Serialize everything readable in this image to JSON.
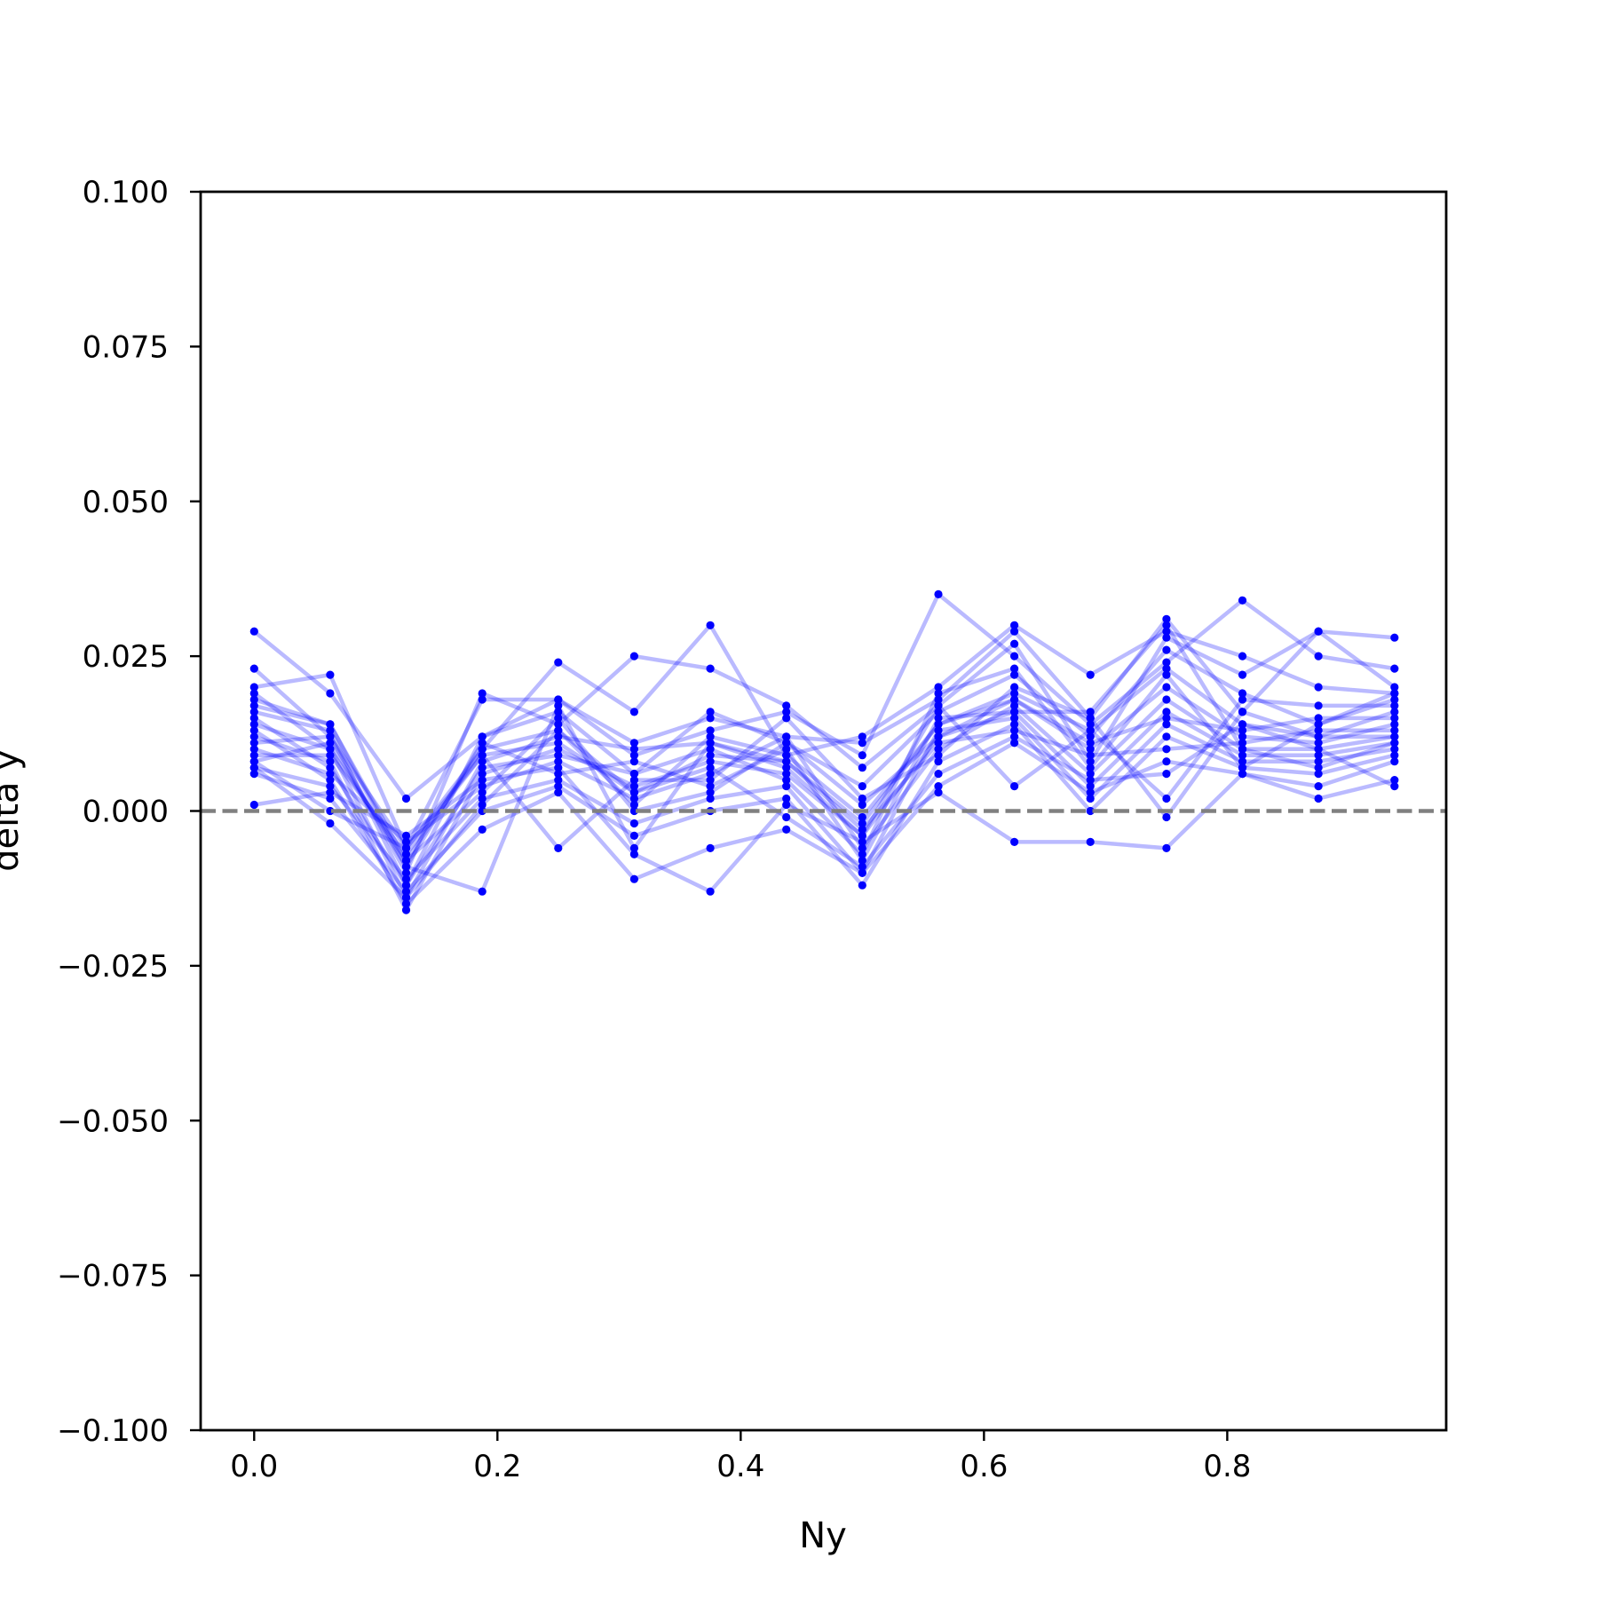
{
  "chart_data": {
    "type": "line",
    "title": "",
    "xlabel": "Ny",
    "ylabel": "delta y",
    "xlim": [
      -0.044,
      0.98
    ],
    "ylim": [
      -0.1,
      0.1
    ],
    "x_ticks": [
      {
        "value": 0.0,
        "label": "0.0"
      },
      {
        "value": 0.2,
        "label": "0.2"
      },
      {
        "value": 0.4,
        "label": "0.4"
      },
      {
        "value": 0.6,
        "label": "0.6"
      },
      {
        "value": 0.8,
        "label": "0.8"
      }
    ],
    "y_ticks": [
      {
        "value": 0.1,
        "label": "0.100"
      },
      {
        "value": 0.075,
        "label": "0.075"
      },
      {
        "value": 0.05,
        "label": "0.050"
      },
      {
        "value": 0.025,
        "label": "0.025"
      },
      {
        "value": 0.0,
        "label": "0.000"
      },
      {
        "value": -0.025,
        "label": "−0.025"
      },
      {
        "value": -0.05,
        "label": "−0.050"
      },
      {
        "value": -0.075,
        "label": "−0.075"
      },
      {
        "value": -0.1,
        "label": "−0.100"
      }
    ],
    "grid": false,
    "legend": "none",
    "series_color": "#0000ff",
    "series_opacity": 0.27,
    "reference_line": {
      "y": 0.0,
      "style": "dashed",
      "color": "#808080"
    },
    "x": [
      0.0,
      0.0625,
      0.125,
      0.1875,
      0.25,
      0.3125,
      0.375,
      0.4375,
      0.5,
      0.5625,
      0.625,
      0.6875,
      0.75,
      0.8125,
      0.875,
      0.9375
    ],
    "series": [
      {
        "values": [
          0.029,
          0.019,
          0.002,
          0.012,
          0.018,
          0.011,
          0.015,
          0.012,
          0.011,
          0.018,
          0.029,
          0.015,
          0.031,
          0.016,
          0.029,
          0.028
        ]
      },
      {
        "values": [
          0.02,
          0.022,
          -0.006,
          0.018,
          0.018,
          0.009,
          0.013,
          0.016,
          0.009,
          0.035,
          0.025,
          0.014,
          0.024,
          0.034,
          0.025,
          0.023
        ]
      },
      {
        "values": [
          0.018,
          0.014,
          -0.008,
          0.01,
          0.024,
          0.016,
          0.03,
          0.009,
          0.012,
          0.02,
          0.03,
          0.022,
          0.029,
          0.025,
          0.02,
          0.019
        ]
      },
      {
        "values": [
          0.023,
          0.012,
          -0.01,
          0.019,
          0.014,
          0.025,
          0.023,
          0.017,
          0.007,
          0.017,
          0.027,
          0.008,
          0.028,
          0.022,
          0.029,
          0.02
        ]
      },
      {
        "values": [
          0.016,
          0.013,
          -0.012,
          0.012,
          0.016,
          0.006,
          0.016,
          0.011,
          0.004,
          0.016,
          0.022,
          0.012,
          0.026,
          0.019,
          0.014,
          0.018
        ]
      },
      {
        "values": [
          0.014,
          0.01,
          -0.014,
          0.008,
          0.012,
          0.01,
          0.011,
          0.008,
          -0.002,
          0.014,
          0.019,
          0.013,
          0.023,
          0.014,
          0.012,
          0.016
        ]
      },
      {
        "values": [
          0.012,
          0.008,
          -0.016,
          0.006,
          0.01,
          0.004,
          0.008,
          0.006,
          -0.004,
          0.012,
          0.018,
          0.01,
          0.02,
          0.012,
          0.011,
          0.014
        ]
      },
      {
        "values": [
          0.01,
          0.006,
          -0.005,
          0.004,
          0.008,
          0.002,
          0.006,
          0.012,
          -0.006,
          0.01,
          0.017,
          0.006,
          0.018,
          0.01,
          0.01,
          0.012
        ]
      },
      {
        "values": [
          0.008,
          0.011,
          -0.009,
          0.011,
          0.006,
          0.008,
          0.004,
          0.01,
          -0.008,
          0.015,
          0.016,
          0.004,
          0.016,
          0.009,
          0.009,
          0.011
        ]
      },
      {
        "values": [
          0.007,
          0.004,
          -0.011,
          0.002,
          0.005,
          -0.002,
          0.002,
          0.004,
          -0.01,
          0.013,
          0.015,
          0.002,
          0.014,
          0.008,
          0.008,
          0.01
        ]
      },
      {
        "values": [
          0.006,
          0.002,
          -0.013,
          0.0,
          0.004,
          -0.004,
          0.0,
          0.002,
          -0.012,
          0.008,
          0.014,
          0.0,
          0.012,
          0.007,
          0.006,
          0.009
        ]
      },
      {
        "values": [
          0.009,
          0.009,
          -0.007,
          0.009,
          0.011,
          0.003,
          0.009,
          0.008,
          -0.003,
          0.011,
          0.013,
          0.009,
          0.01,
          0.011,
          0.013,
          0.013
        ]
      },
      {
        "values": [
          0.011,
          0.012,
          -0.006,
          0.01,
          0.013,
          0.001,
          0.012,
          0.009,
          -0.001,
          0.014,
          0.018,
          0.011,
          0.015,
          0.013,
          0.015,
          0.015
        ]
      },
      {
        "values": [
          0.013,
          0.005,
          -0.015,
          -0.003,
          0.003,
          -0.011,
          -0.006,
          -0.003,
          -0.01,
          0.004,
          0.011,
          0.003,
          0.008,
          0.006,
          0.004,
          0.008
        ]
      },
      {
        "values": [
          0.001,
          0.003,
          -0.004,
          0.005,
          0.007,
          -0.007,
          -0.013,
          0.001,
          -0.005,
          0.003,
          -0.005,
          -0.005,
          -0.006,
          0.006,
          0.002,
          0.005
        ]
      },
      {
        "values": [
          0.017,
          0.014,
          -0.009,
          -0.013,
          0.017,
          -0.006,
          0.011,
          0.007,
          -0.004,
          0.017,
          0.004,
          0.013,
          0.002,
          0.018,
          0.017,
          0.017
        ]
      },
      {
        "values": [
          0.008,
          0.0,
          -0.006,
          0.009,
          -0.006,
          0.005,
          0.005,
          0.015,
          0.002,
          0.009,
          0.02,
          0.015,
          -0.001,
          0.016,
          0.012,
          0.012
        ]
      },
      {
        "values": [
          0.015,
          0.007,
          -0.012,
          0.007,
          0.009,
          0.006,
          0.01,
          0.005,
          -0.007,
          0.019,
          0.023,
          0.007,
          0.022,
          0.007,
          0.014,
          0.019
        ]
      },
      {
        "values": [
          0.019,
          0.01,
          -0.008,
          0.003,
          0.015,
          0.0,
          0.003,
          0.011,
          0.001,
          0.012,
          0.016,
          0.016,
          0.03,
          0.01,
          0.007,
          0.011
        ]
      },
      {
        "values": [
          0.007,
          -0.002,
          -0.014,
          0.001,
          0.013,
          0.003,
          0.007,
          -0.001,
          -0.009,
          0.006,
          0.012,
          0.005,
          0.006,
          0.014,
          0.01,
          0.004
        ]
      }
    ]
  }
}
